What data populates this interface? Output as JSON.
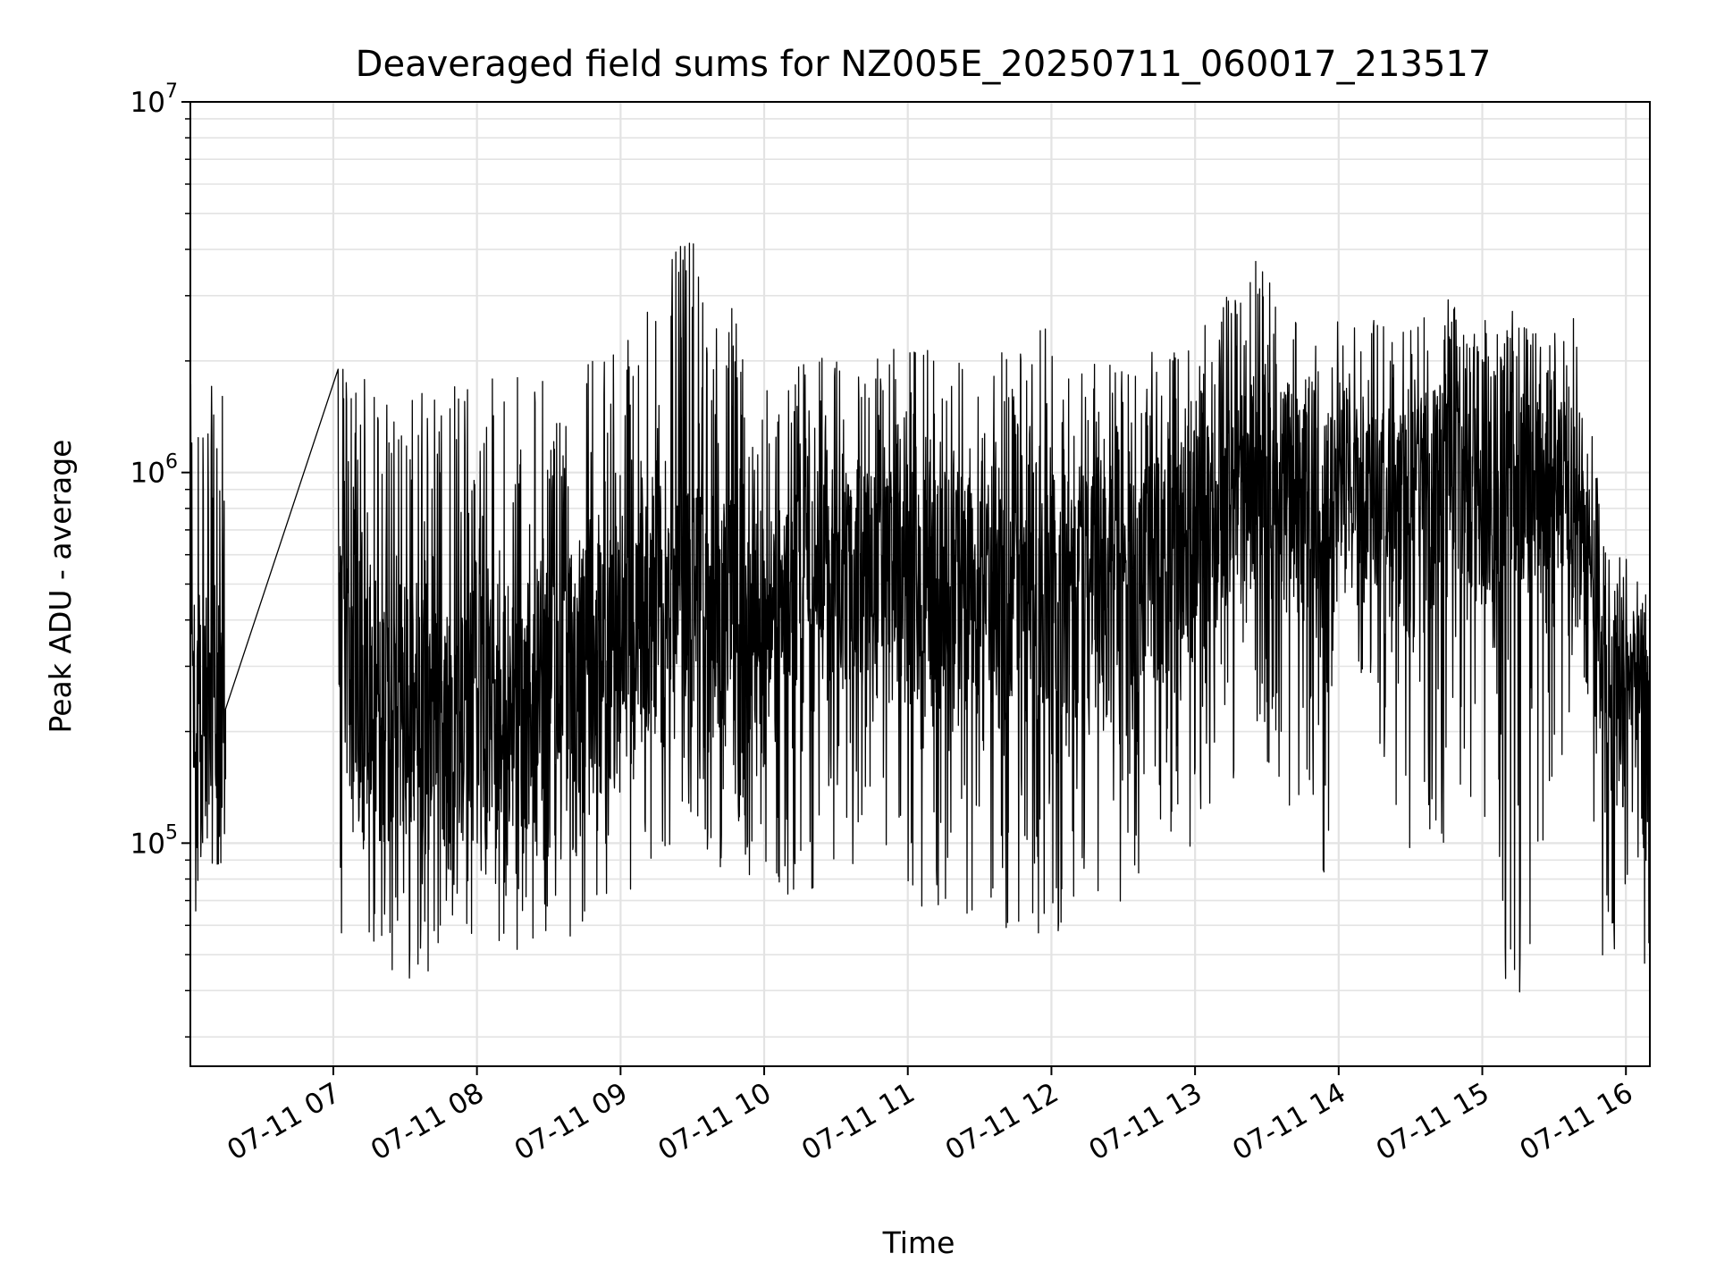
{
  "chart_data": {
    "type": "line",
    "title": "Deaveraged field sums for NZ005E_20250711_060017_213517",
    "xlabel": "Time",
    "ylabel": "Peak ADU - average",
    "y_scale": "log",
    "ylim": [
      25000,
      10000000
    ],
    "xlim": [
      "2025-07-11 06:00:17",
      "2025-07-11 16:10:00"
    ],
    "grid": true,
    "line_color": "#000000",
    "y_ticks": [
      {
        "base": "10",
        "exp": "5",
        "value": 100000
      },
      {
        "base": "10",
        "exp": "6",
        "value": 1000000
      },
      {
        "base": "10",
        "exp": "7",
        "value": 10000000
      }
    ],
    "x_ticks": [
      {
        "label": "07-11 07",
        "time": "2025-07-11 07:00"
      },
      {
        "label": "07-11 08",
        "time": "2025-07-11 08:00"
      },
      {
        "label": "07-11 09",
        "time": "2025-07-11 09:00"
      },
      {
        "label": "07-11 10",
        "time": "2025-07-11 10:00"
      },
      {
        "label": "07-11 11",
        "time": "2025-07-11 11:00"
      },
      {
        "label": "07-11 12",
        "time": "2025-07-11 12:00"
      },
      {
        "label": "07-11 13",
        "time": "2025-07-11 13:00"
      },
      {
        "label": "07-11 14",
        "time": "2025-07-11 14:00"
      },
      {
        "label": "07-11 15",
        "time": "2025-07-11 15:00"
      },
      {
        "label": "07-11 16",
        "time": "2025-07-11 16:00"
      }
    ],
    "series": [
      {
        "name": "",
        "profile": [
          {
            "time": "2025-07-11 06:00:17",
            "low": 50000,
            "high": 1750000,
            "typical": 200000
          },
          {
            "time": "2025-07-11 06:14:00",
            "low": 65000,
            "high": 1700000,
            "typical": 180000
          },
          {
            "time": "2025-07-11 07:02:00",
            "low": 55000,
            "high": 1950000,
            "typical": 300000
          },
          {
            "time": "2025-07-11 07:30:00",
            "low": 42000,
            "high": 1700000,
            "typical": 200000
          },
          {
            "time": "2025-07-11 08:00:00",
            "low": 50000,
            "high": 1950000,
            "typical": 220000
          },
          {
            "time": "2025-07-11 08:30:00",
            "low": 52000,
            "high": 1900000,
            "typical": 250000
          },
          {
            "time": "2025-07-11 09:00:00",
            "low": 65000,
            "high": 2400000,
            "typical": 330000
          },
          {
            "time": "2025-07-11 09:28:00",
            "low": 100000,
            "high": 4400000,
            "typical": 400000
          },
          {
            "time": "2025-07-11 10:00:00",
            "low": 70000,
            "high": 2000000,
            "typical": 380000
          },
          {
            "time": "2025-07-11 10:40:00",
            "low": 80000,
            "high": 2100000,
            "typical": 500000
          },
          {
            "time": "2025-07-11 11:00:00",
            "low": 60000,
            "high": 2200000,
            "typical": 500000
          },
          {
            "time": "2025-07-11 11:30:00",
            "low": 60000,
            "high": 2000000,
            "typical": 450000
          },
          {
            "time": "2025-07-11 12:00:00",
            "low": 50000,
            "high": 2500000,
            "typical": 480000
          },
          {
            "time": "2025-07-11 12:30:00",
            "low": 70000,
            "high": 2000000,
            "typical": 520000
          },
          {
            "time": "2025-07-11 13:00:00",
            "low": 95000,
            "high": 2300000,
            "typical": 600000
          },
          {
            "time": "2025-07-11 13:25:00",
            "low": 180000,
            "high": 3800000,
            "typical": 1000000
          },
          {
            "time": "2025-07-11 13:55:00",
            "low": 70000,
            "high": 2000000,
            "typical": 700000
          },
          {
            "time": "2025-07-11 14:00:00",
            "low": 450000,
            "high": 2700000,
            "typical": 1000000
          },
          {
            "time": "2025-07-11 14:30:00",
            "low": 90000,
            "high": 2600000,
            "typical": 700000
          },
          {
            "time": "2025-07-11 14:50:00",
            "low": 100000,
            "high": 3300000,
            "typical": 1000000
          },
          {
            "time": "2025-07-11 15:15:00",
            "low": 33000,
            "high": 2700000,
            "typical": 1000000
          },
          {
            "time": "2025-07-11 15:40:00",
            "low": 300000,
            "high": 2700000,
            "typical": 1000000
          },
          {
            "time": "2025-07-11 15:50:00",
            "low": 45000,
            "high": 800000,
            "typical": 250000
          },
          {
            "time": "2025-07-11 16:10:00",
            "low": 36000,
            "high": 530000,
            "typical": 200000
          }
        ],
        "gap": {
          "from": "2025-07-11 06:15:00",
          "to": "2025-07-11 07:02:00",
          "from_value": 230000,
          "to_value": 1900000
        }
      }
    ]
  }
}
